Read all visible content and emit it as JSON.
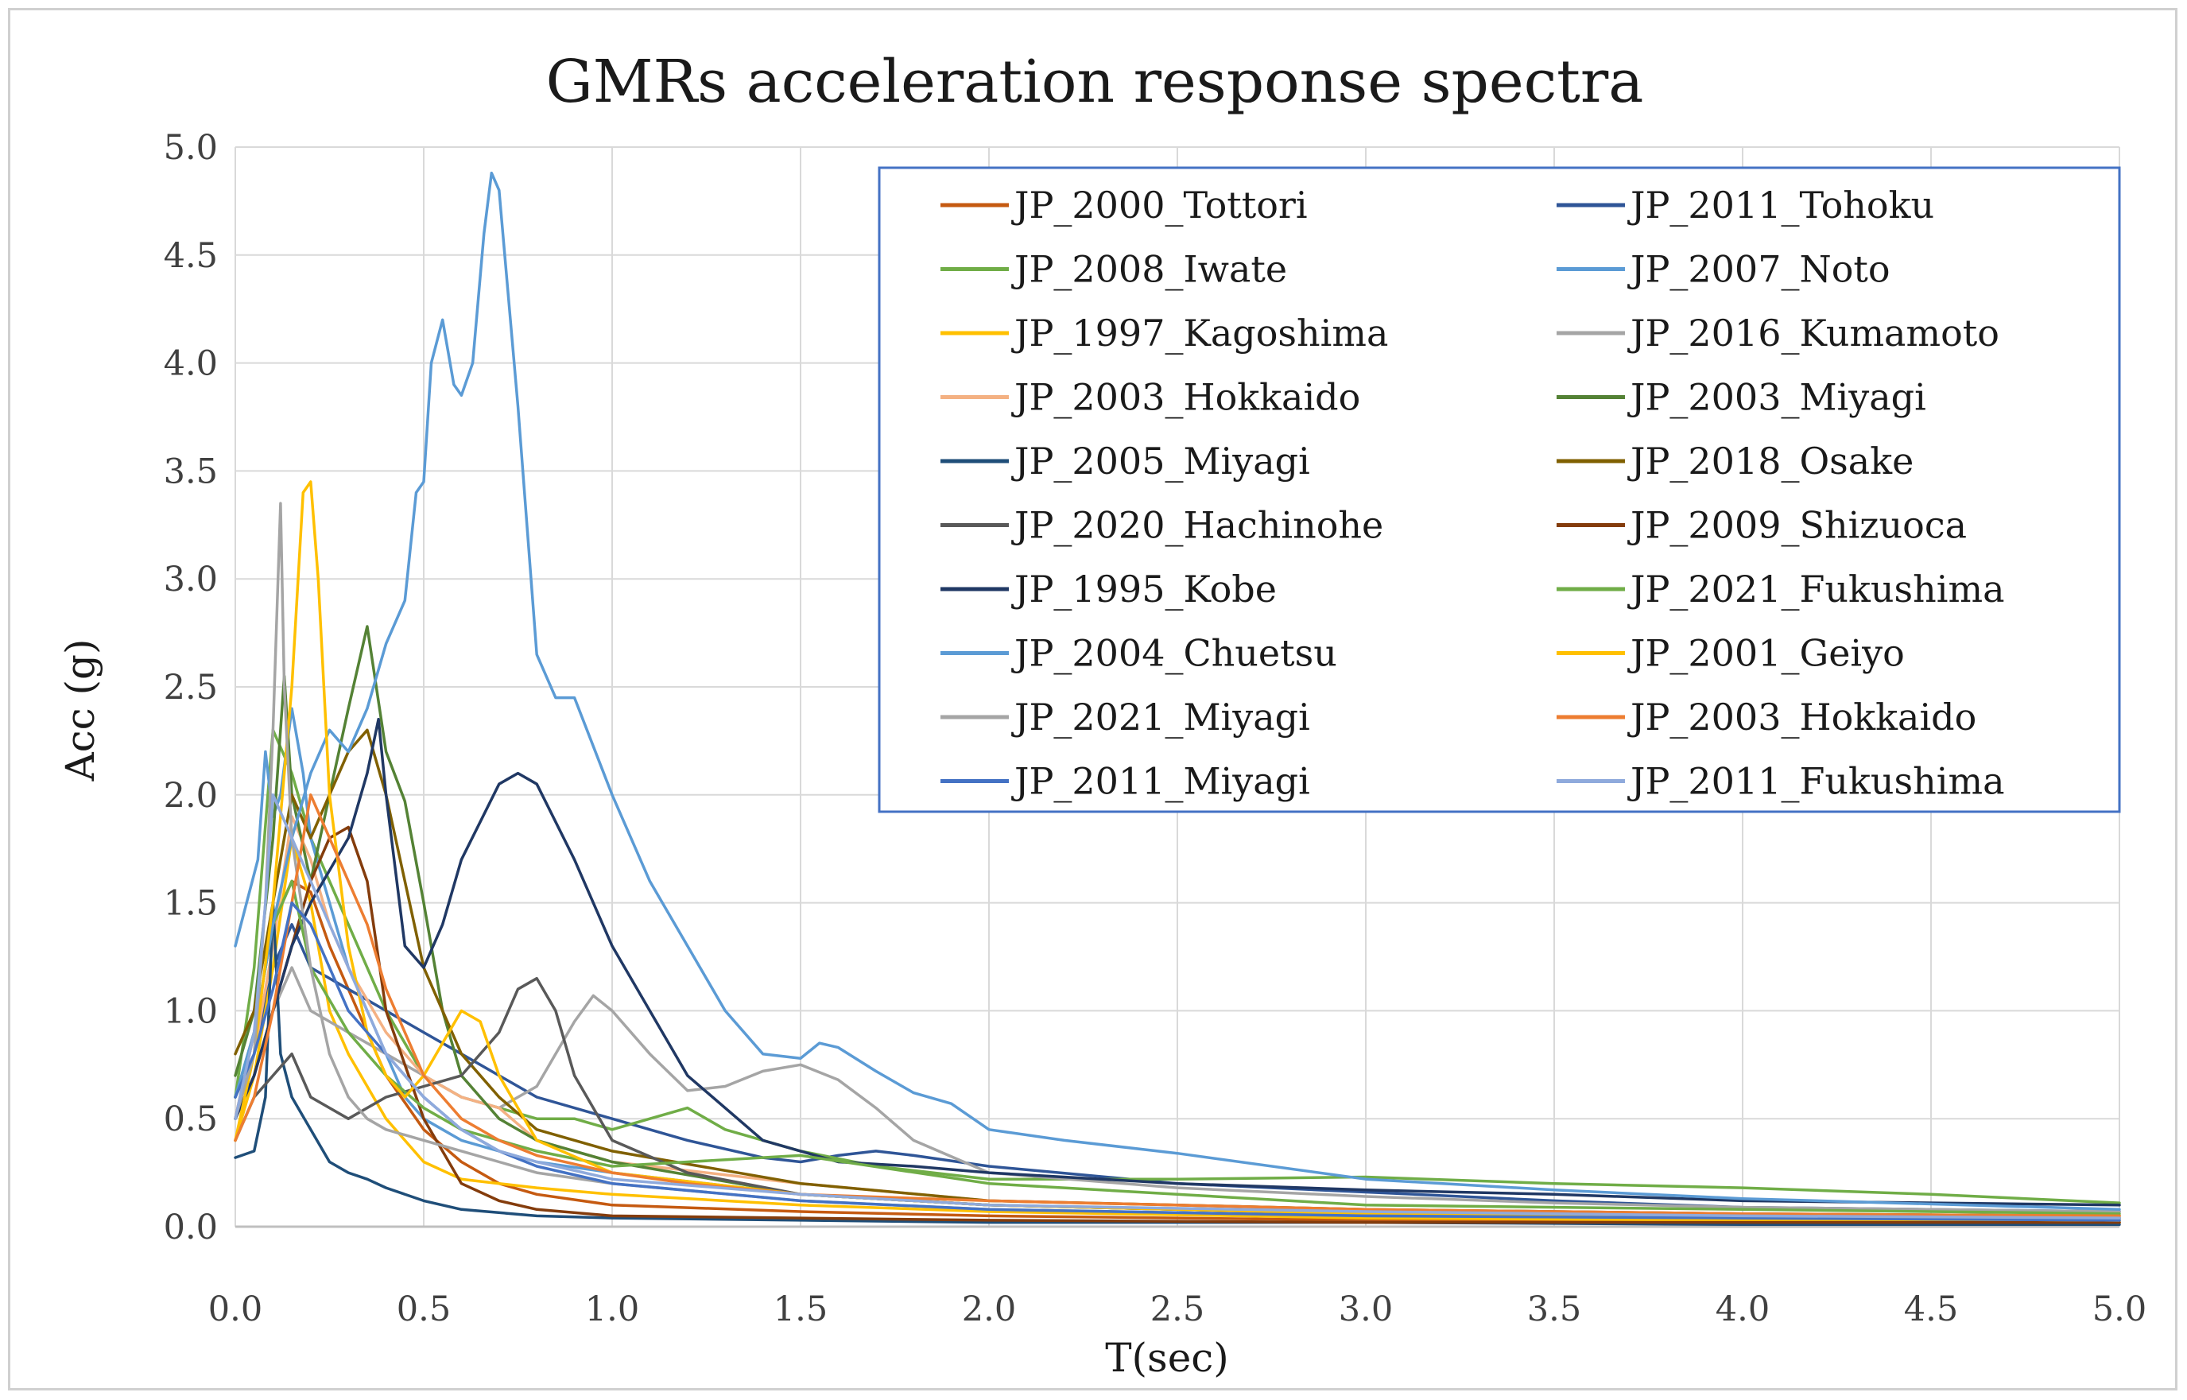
{
  "chart_data": {
    "type": "line",
    "title": "GMRs acceleration response spectra",
    "xlabel": "T(sec)",
    "ylabel": "Acc (g)",
    "xlim": [
      0,
      5
    ],
    "ylim": [
      0,
      5
    ],
    "xticks": [
      "0.0",
      "0.5",
      "1.0",
      "1.5",
      "2.0",
      "2.5",
      "3.0",
      "3.5",
      "4.0",
      "4.5",
      "5.0"
    ],
    "yticks": [
      "0.0",
      "0.5",
      "1.0",
      "1.5",
      "2.0",
      "2.5",
      "3.0",
      "3.5",
      "4.0",
      "4.5",
      "5.0"
    ],
    "grid": true,
    "legend_position": "top-right",
    "series": [
      {
        "name": "JP_2000_Tottori",
        "color": "#c55a11",
        "x": [
          0.0,
          0.05,
          0.1,
          0.15,
          0.2,
          0.25,
          0.3,
          0.35,
          0.4,
          0.5,
          0.6,
          0.7,
          0.8,
          1.0,
          1.5,
          2.0,
          3.0,
          4.0,
          5.0
        ],
        "y": [
          0.5,
          0.9,
          1.4,
          1.6,
          1.55,
          1.3,
          1.1,
          0.9,
          0.7,
          0.45,
          0.3,
          0.2,
          0.15,
          0.1,
          0.07,
          0.05,
          0.03,
          0.02,
          0.02
        ]
      },
      {
        "name": "JP_2011_Tohoku",
        "color": "#2f5597",
        "x": [
          0.0,
          0.05,
          0.1,
          0.15,
          0.2,
          0.3,
          0.4,
          0.5,
          0.6,
          0.7,
          0.8,
          1.0,
          1.2,
          1.4,
          1.5,
          1.6,
          1.7,
          1.8,
          2.0,
          2.5,
          3.0,
          3.5,
          4.0,
          5.0
        ],
        "y": [
          0.6,
          0.8,
          1.2,
          1.4,
          1.2,
          1.1,
          1.0,
          0.9,
          0.8,
          0.7,
          0.6,
          0.5,
          0.4,
          0.32,
          0.3,
          0.33,
          0.35,
          0.33,
          0.28,
          0.2,
          0.16,
          0.12,
          0.09,
          0.07
        ]
      },
      {
        "name": "JP_2008_Iwate",
        "color": "#70ad47",
        "x": [
          0.0,
          0.05,
          0.1,
          0.15,
          0.2,
          0.3,
          0.4,
          0.5,
          0.6,
          0.7,
          0.8,
          0.9,
          1.0,
          1.1,
          1.2,
          1.3,
          1.5,
          1.7,
          2.0,
          2.5,
          3.0,
          3.5,
          4.0,
          4.5,
          5.0
        ],
        "y": [
          0.6,
          1.2,
          2.3,
          2.1,
          1.8,
          1.4,
          1.0,
          0.7,
          0.6,
          0.55,
          0.5,
          0.5,
          0.45,
          0.5,
          0.55,
          0.45,
          0.35,
          0.28,
          0.22,
          0.22,
          0.23,
          0.2,
          0.18,
          0.15,
          0.11
        ]
      },
      {
        "name": "JP_2007_Noto",
        "color": "#5b9bd5",
        "x": [
          0.0,
          0.03,
          0.06,
          0.08,
          0.1,
          0.12,
          0.15,
          0.18,
          0.2,
          0.25,
          0.3,
          0.35,
          0.4,
          0.45,
          0.5,
          0.55,
          0.6,
          0.7,
          0.8,
          1.0,
          1.5,
          2.0,
          3.0,
          4.0,
          5.0
        ],
        "y": [
          1.3,
          1.5,
          1.7,
          2.2,
          1.9,
          2.0,
          2.4,
          2.1,
          1.8,
          1.5,
          1.2,
          1.0,
          0.8,
          0.6,
          0.5,
          0.45,
          0.4,
          0.35,
          0.3,
          0.25,
          0.15,
          0.1,
          0.06,
          0.04,
          0.03
        ]
      },
      {
        "name": "JP_1997_Kagoshima",
        "color": "#ffc000",
        "x": [
          0.0,
          0.05,
          0.1,
          0.15,
          0.2,
          0.25,
          0.3,
          0.4,
          0.5,
          0.6,
          0.7,
          0.8,
          1.0,
          1.5,
          2.0,
          3.0,
          4.0,
          5.0
        ],
        "y": [
          0.4,
          0.7,
          1.2,
          1.8,
          1.5,
          1.0,
          0.8,
          0.5,
          0.3,
          0.22,
          0.2,
          0.18,
          0.15,
          0.1,
          0.07,
          0.04,
          0.03,
          0.02
        ]
      },
      {
        "name": "JP_2016_Kumamoto",
        "color": "#a5a5a5",
        "x": [
          0.0,
          0.05,
          0.1,
          0.15,
          0.2,
          0.3,
          0.4,
          0.5,
          0.6,
          0.7,
          0.8,
          0.9,
          0.95,
          1.0,
          1.1,
          1.2,
          1.3,
          1.4,
          1.5,
          1.6,
          1.7,
          1.8,
          2.0,
          2.5,
          3.0,
          3.5,
          4.0,
          5.0
        ],
        "y": [
          0.5,
          0.7,
          1.0,
          1.2,
          1.0,
          0.9,
          0.8,
          0.7,
          0.6,
          0.55,
          0.65,
          0.95,
          1.07,
          1.0,
          0.8,
          0.63,
          0.65,
          0.72,
          0.75,
          0.68,
          0.55,
          0.4,
          0.25,
          0.18,
          0.14,
          0.11,
          0.09,
          0.07
        ]
      },
      {
        "name": "JP_2003_Hokkaido",
        "color": "#f4b183",
        "x": [
          0.0,
          0.05,
          0.1,
          0.15,
          0.2,
          0.25,
          0.3,
          0.4,
          0.5,
          0.6,
          0.7,
          0.8,
          1.0,
          1.5,
          2.0,
          3.0,
          4.0,
          5.0
        ],
        "y": [
          0.5,
          0.8,
          1.3,
          1.9,
          1.7,
          1.4,
          1.2,
          0.9,
          0.7,
          0.6,
          0.55,
          0.4,
          0.3,
          0.2,
          0.12,
          0.08,
          0.06,
          0.05
        ]
      },
      {
        "name": "JP_2003_Miyagi",
        "color": "#548235",
        "x": [
          0.0,
          0.05,
          0.1,
          0.13,
          0.15,
          0.2,
          0.25,
          0.3,
          0.35,
          0.4,
          0.45,
          0.5,
          0.55,
          0.6,
          0.7,
          0.8,
          1.0,
          1.5,
          2.0,
          3.0,
          4.0,
          5.0
        ],
        "y": [
          0.7,
          1.0,
          1.8,
          2.55,
          2.0,
          1.6,
          2.0,
          2.4,
          2.78,
          2.2,
          1.97,
          1.5,
          1.0,
          0.7,
          0.5,
          0.4,
          0.3,
          0.15,
          0.1,
          0.06,
          0.05,
          0.04
        ]
      },
      {
        "name": "JP_2005_Miyagi",
        "color": "#1f4e79",
        "x": [
          0.0,
          0.05,
          0.08,
          0.1,
          0.12,
          0.15,
          0.2,
          0.25,
          0.3,
          0.35,
          0.4,
          0.5,
          0.6,
          0.8,
          1.0,
          1.5,
          2.0,
          3.0,
          4.0,
          5.0
        ],
        "y": [
          0.32,
          0.35,
          0.6,
          1.5,
          0.8,
          0.6,
          0.45,
          0.3,
          0.25,
          0.22,
          0.18,
          0.12,
          0.08,
          0.05,
          0.04,
          0.03,
          0.02,
          0.02,
          0.01,
          0.01
        ]
      },
      {
        "name": "JP_2018_Osake",
        "color": "#806000",
        "x": [
          0.0,
          0.05,
          0.1,
          0.15,
          0.2,
          0.3,
          0.35,
          0.4,
          0.5,
          0.6,
          0.7,
          0.8,
          1.0,
          1.5,
          2.0,
          2.5,
          3.0,
          4.0,
          5.0
        ],
        "y": [
          0.8,
          1.0,
          1.5,
          2.0,
          1.8,
          2.2,
          2.3,
          2.0,
          1.2,
          0.8,
          0.6,
          0.45,
          0.35,
          0.2,
          0.12,
          0.1,
          0.08,
          0.06,
          0.05
        ]
      },
      {
        "name": "JP_2020_Hachinohe",
        "color": "#595959",
        "x": [
          0.0,
          0.05,
          0.1,
          0.15,
          0.2,
          0.3,
          0.4,
          0.5,
          0.6,
          0.7,
          0.75,
          0.8,
          0.85,
          0.9,
          1.0,
          1.2,
          1.5,
          2.0,
          3.0,
          4.0,
          5.0
        ],
        "y": [
          0.4,
          0.6,
          0.7,
          0.8,
          0.6,
          0.5,
          0.6,
          0.65,
          0.7,
          0.9,
          1.1,
          1.15,
          1.0,
          0.7,
          0.4,
          0.25,
          0.15,
          0.1,
          0.06,
          0.05,
          0.04
        ]
      },
      {
        "name": "JP_2009_Shizuoca",
        "color": "#843c0c",
        "x": [
          0.0,
          0.05,
          0.1,
          0.15,
          0.2,
          0.25,
          0.3,
          0.35,
          0.4,
          0.5,
          0.6,
          0.7,
          0.8,
          1.0,
          1.5,
          2.0,
          3.0,
          4.0,
          5.0
        ],
        "y": [
          0.5,
          0.7,
          1.0,
          1.3,
          1.6,
          1.8,
          1.85,
          1.6,
          1.0,
          0.5,
          0.2,
          0.12,
          0.08,
          0.05,
          0.04,
          0.03,
          0.02,
          0.02,
          0.02
        ]
      },
      {
        "name": "JP_1995_Kobe",
        "color": "#203864",
        "x": [
          0.0,
          0.05,
          0.1,
          0.15,
          0.2,
          0.3,
          0.35,
          0.38,
          0.4,
          0.45,
          0.5,
          0.55,
          0.6,
          0.7,
          0.75,
          0.8,
          0.9,
          1.0,
          1.2,
          1.4,
          1.6,
          1.8,
          2.0,
          2.5,
          3.0,
          3.5,
          4.0,
          5.0
        ],
        "y": [
          0.5,
          0.7,
          1.0,
          1.3,
          1.5,
          1.8,
          2.1,
          2.35,
          2.0,
          1.3,
          1.2,
          1.4,
          1.7,
          2.05,
          2.1,
          2.05,
          1.7,
          1.3,
          0.7,
          0.4,
          0.3,
          0.28,
          0.25,
          0.2,
          0.17,
          0.15,
          0.12,
          0.1
        ]
      },
      {
        "name": "JP_2021_Fukushima",
        "color": "#70ad47",
        "x": [
          0.0,
          0.05,
          0.1,
          0.15,
          0.2,
          0.3,
          0.4,
          0.5,
          0.6,
          0.8,
          1.0,
          1.2,
          1.5,
          2.0,
          2.5,
          3.0,
          4.0,
          5.0
        ],
        "y": [
          0.6,
          0.9,
          1.4,
          1.6,
          1.2,
          0.9,
          0.7,
          0.55,
          0.45,
          0.35,
          0.28,
          0.3,
          0.33,
          0.2,
          0.15,
          0.1,
          0.08,
          0.06
        ]
      },
      {
        "name": "JP_2004_Chuetsu",
        "color": "#5b9bd5",
        "x": [
          0.0,
          0.05,
          0.1,
          0.15,
          0.2,
          0.25,
          0.3,
          0.35,
          0.4,
          0.45,
          0.48,
          0.5,
          0.52,
          0.55,
          0.58,
          0.6,
          0.63,
          0.66,
          0.68,
          0.7,
          0.75,
          0.8,
          0.85,
          0.9,
          1.0,
          1.1,
          1.2,
          1.3,
          1.4,
          1.5,
          1.55,
          1.6,
          1.7,
          1.8,
          1.9,
          2.0,
          2.2,
          2.5,
          3.0,
          3.5,
          4.0,
          5.0
        ],
        "y": [
          0.6,
          0.9,
          1.4,
          1.8,
          2.1,
          2.3,
          2.2,
          2.4,
          2.7,
          2.9,
          3.4,
          3.45,
          4.0,
          4.2,
          3.9,
          3.85,
          4.0,
          4.6,
          4.88,
          4.8,
          3.8,
          2.65,
          2.45,
          2.45,
          2.0,
          1.6,
          1.3,
          1.0,
          0.8,
          0.78,
          0.85,
          0.83,
          0.72,
          0.62,
          0.57,
          0.45,
          0.4,
          0.34,
          0.22,
          0.17,
          0.13,
          0.08
        ]
      },
      {
        "name": "JP_2001_Geiyo",
        "color": "#ffc000",
        "x": [
          0.0,
          0.05,
          0.1,
          0.15,
          0.18,
          0.2,
          0.22,
          0.25,
          0.3,
          0.35,
          0.4,
          0.45,
          0.5,
          0.55,
          0.6,
          0.65,
          0.7,
          0.8,
          1.0,
          1.5,
          2.0,
          3.0,
          4.0,
          5.0
        ],
        "y": [
          0.4,
          0.8,
          1.5,
          2.5,
          3.4,
          3.45,
          3.0,
          2.0,
          1.3,
          0.9,
          0.7,
          0.6,
          0.7,
          0.85,
          1.0,
          0.95,
          0.7,
          0.4,
          0.25,
          0.15,
          0.1,
          0.06,
          0.04,
          0.03
        ]
      },
      {
        "name": "JP_2021_Miyagi",
        "color": "#a5a5a5",
        "x": [
          0.0,
          0.05,
          0.08,
          0.1,
          0.12,
          0.13,
          0.15,
          0.2,
          0.25,
          0.3,
          0.35,
          0.4,
          0.5,
          0.6,
          0.7,
          0.8,
          1.0,
          1.5,
          2.0,
          3.0,
          4.0,
          5.0
        ],
        "y": [
          0.5,
          0.8,
          1.5,
          2.3,
          3.35,
          2.5,
          1.8,
          1.2,
          0.8,
          0.6,
          0.5,
          0.45,
          0.4,
          0.35,
          0.3,
          0.25,
          0.2,
          0.12,
          0.08,
          0.05,
          0.04,
          0.03
        ]
      },
      {
        "name": "JP_2003_Hokkaido",
        "color": "#ed7d31",
        "x": [
          0.0,
          0.05,
          0.1,
          0.15,
          0.2,
          0.25,
          0.3,
          0.35,
          0.4,
          0.5,
          0.6,
          0.7,
          0.8,
          1.0,
          1.2,
          1.5,
          2.0,
          3.0,
          4.0,
          5.0
        ],
        "y": [
          0.4,
          0.6,
          1.0,
          1.5,
          2.0,
          1.8,
          1.6,
          1.4,
          1.1,
          0.7,
          0.5,
          0.4,
          0.33,
          0.25,
          0.2,
          0.15,
          0.12,
          0.08,
          0.06,
          0.05
        ]
      },
      {
        "name": "JP_2011_Miyagi",
        "color": "#4472c4",
        "x": [
          0.0,
          0.05,
          0.1,
          0.15,
          0.2,
          0.25,
          0.3,
          0.35,
          0.4,
          0.45,
          0.5,
          0.6,
          0.7,
          0.8,
          1.0,
          1.5,
          2.0,
          3.0,
          4.0,
          5.0
        ],
        "y": [
          0.6,
          0.8,
          1.1,
          1.5,
          1.4,
          1.2,
          1.0,
          0.9,
          0.8,
          0.7,
          0.6,
          0.45,
          0.35,
          0.28,
          0.2,
          0.12,
          0.08,
          0.05,
          0.04,
          0.03
        ]
      },
      {
        "name": "JP_2011_Fukushima",
        "color": "#8faadc",
        "x": [
          0.0,
          0.05,
          0.08,
          0.1,
          0.15,
          0.2,
          0.25,
          0.3,
          0.35,
          0.4,
          0.5,
          0.6,
          0.7,
          0.8,
          1.0,
          1.5,
          2.0,
          3.0,
          4.0,
          5.0
        ],
        "y": [
          0.5,
          0.9,
          1.5,
          2.0,
          1.8,
          1.6,
          1.4,
          1.2,
          1.0,
          0.8,
          0.6,
          0.45,
          0.35,
          0.3,
          0.22,
          0.15,
          0.1,
          0.07,
          0.05,
          0.04
        ]
      }
    ]
  }
}
